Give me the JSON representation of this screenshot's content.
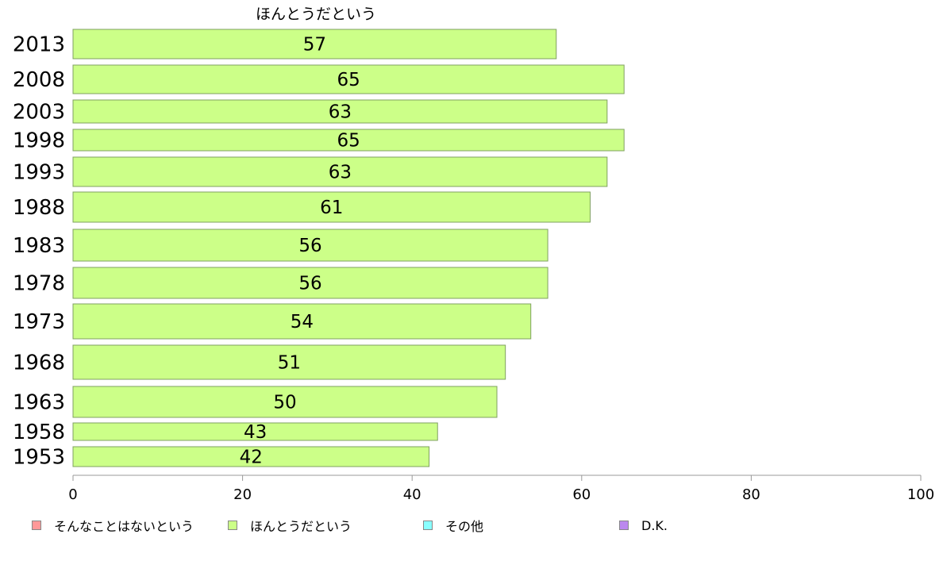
{
  "chart_data": {
    "type": "bar",
    "orientation": "horizontal",
    "title": "ほんとうだという",
    "categories": [
      "2013",
      "2008",
      "2003",
      "1998",
      "1993",
      "1988",
      "1983",
      "1978",
      "1973",
      "1968",
      "1963",
      "1958",
      "1953"
    ],
    "series": [
      {
        "name": "ほんとうだという",
        "values": [
          57,
          65,
          63,
          65,
          63,
          61,
          56,
          56,
          54,
          51,
          50,
          43,
          42
        ],
        "color": "#ccff88"
      }
    ],
    "xlim": [
      0,
      100
    ],
    "xticks": [
      "0",
      "20",
      "40",
      "60",
      "80",
      "100"
    ],
    "legend": [
      {
        "label": "そんなことはないという",
        "color": "#ff9999"
      },
      {
        "label": "ほんとうだという",
        "color": "#ccff88"
      },
      {
        "label": "その他",
        "color": "#88ffff"
      },
      {
        "label": "D.K.",
        "color": "#bb88ee"
      }
    ],
    "legend_position": "bottom",
    "grid": false
  }
}
